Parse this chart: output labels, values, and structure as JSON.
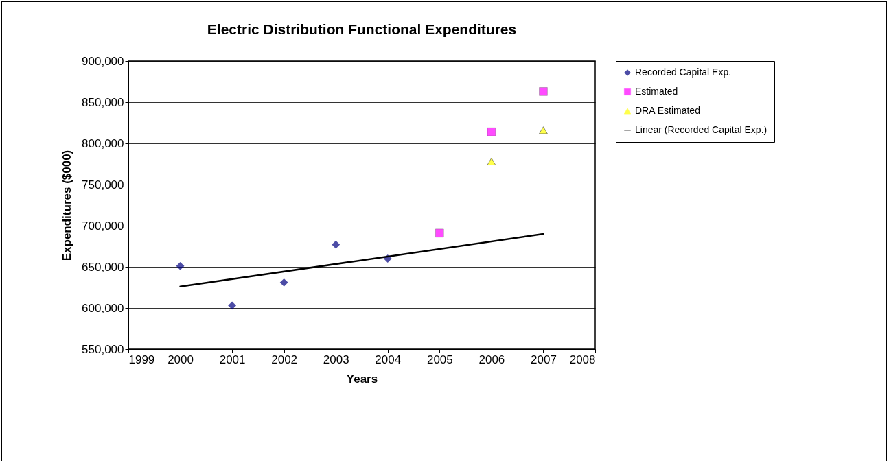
{
  "chart_data": {
    "type": "scatter",
    "title": "Electric Distribution Functional Expenditures",
    "xlabel": "Years",
    "ylabel": "Expenditures ($000)",
    "x": [
      2000,
      2001,
      2002,
      2003,
      2004,
      2005,
      2006,
      2007
    ],
    "series": [
      {
        "name": "Recorded Capital Exp.",
        "color": "#000080",
        "marker": "diamond",
        "values": [
          651000,
          603000,
          631000,
          677000,
          660000,
          null,
          null,
          null
        ]
      },
      {
        "name": "Estimated",
        "color": "#ff00ff",
        "marker": "square",
        "values": [
          null,
          null,
          null,
          null,
          null,
          691000,
          814000,
          863000
        ]
      },
      {
        "name": "DRA Estimated",
        "color": "#ffff00",
        "marker": "triangle",
        "values": [
          null,
          null,
          null,
          null,
          null,
          null,
          778000,
          816000
        ]
      },
      {
        "name": "Linear (Recorded Capital Exp.)",
        "type": "line",
        "color": "#000000",
        "marker": "none",
        "line_style": "solid",
        "x": [
          2000,
          2007
        ],
        "values": [
          626000,
          690000
        ]
      }
    ],
    "xlim": [
      1999,
      2008
    ],
    "xticks": [
      1999,
      2000,
      2001,
      2002,
      2003,
      2004,
      2005,
      2006,
      2007,
      2008
    ],
    "ylim": [
      550000,
      900000
    ],
    "yticks": [
      {
        "value": 550000,
        "label": "550,000"
      },
      {
        "value": 600000,
        "label": "600,000"
      },
      {
        "value": 650000,
        "label": "650,000"
      },
      {
        "value": 700000,
        "label": "700,000"
      },
      {
        "value": 750000,
        "label": "750,000"
      },
      {
        "value": 800000,
        "label": "800,000"
      },
      {
        "value": 850000,
        "label": "850,000"
      },
      {
        "value": 900000,
        "label": "900,000"
      }
    ],
    "grid": "y",
    "legend": "right"
  }
}
